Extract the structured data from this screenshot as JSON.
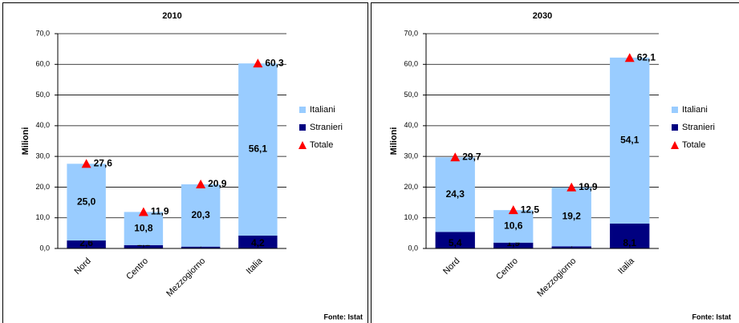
{
  "chart_data": [
    {
      "type": "bar",
      "title": "2010",
      "y_label": "Milioni",
      "source": "Fonte: Istat",
      "categories": [
        "Nord",
        "Centro",
        "Mezzogiorno",
        "Italia"
      ],
      "series": [
        {
          "name": "Italiani",
          "color": "#99ccff",
          "stacked": true,
          "values": [
            25.0,
            10.8,
            20.3,
            56.1
          ],
          "value_labels": [
            "25,0",
            "10,8",
            "20,3",
            "56,1"
          ]
        },
        {
          "name": "Stranieri",
          "color": "#000080",
          "stacked": true,
          "values": [
            2.6,
            1.1,
            0.6,
            4.2
          ],
          "value_labels": [
            "2,6",
            "1,1",
            "0,6",
            "4,2"
          ]
        },
        {
          "name": "Totale",
          "color": "#ff0000",
          "marker": "triangle",
          "values": [
            27.6,
            11.9,
            20.9,
            60.3
          ],
          "value_labels": [
            "27,6",
            "11,9",
            "20,9",
            "60,3"
          ]
        }
      ],
      "ylim": [
        0,
        70
      ],
      "yticks": [
        {
          "value": 0,
          "label": "0,0"
        },
        {
          "value": 10,
          "label": "10,0"
        },
        {
          "value": 20,
          "label": "20,0"
        },
        {
          "value": 30,
          "label": "30,0"
        },
        {
          "value": 40,
          "label": "40,0"
        },
        {
          "value": 50,
          "label": "50,0"
        },
        {
          "value": 60,
          "label": "60,0"
        },
        {
          "value": 70,
          "label": "70,0"
        }
      ],
      "grid": true,
      "legend": "right"
    },
    {
      "type": "bar",
      "title": "2030",
      "y_label": "Milioni",
      "source": "Fonte: Istat",
      "categories": [
        "Nord",
        "Centro",
        "Mezzogiorno",
        "Italia"
      ],
      "series": [
        {
          "name": "Italiani",
          "color": "#99ccff",
          "stacked": true,
          "values": [
            24.3,
            10.6,
            19.2,
            54.1
          ],
          "value_labels": [
            "24,3",
            "10,6",
            "19,2",
            "54,1"
          ]
        },
        {
          "name": "Stranieri",
          "color": "#000080",
          "stacked": true,
          "values": [
            5.4,
            1.9,
            0.7,
            8.1
          ],
          "value_labels": [
            "5,4",
            "1,9",
            "0,7",
            "8,1"
          ]
        },
        {
          "name": "Totale",
          "color": "#ff0000",
          "marker": "triangle",
          "values": [
            29.7,
            12.5,
            19.9,
            62.1
          ],
          "value_labels": [
            "29,7",
            "12,5",
            "19,9",
            "62,1"
          ]
        }
      ],
      "ylim": [
        0,
        70
      ],
      "yticks": [
        {
          "value": 0,
          "label": "0,0"
        },
        {
          "value": 10,
          "label": "10,0"
        },
        {
          "value": 20,
          "label": "20,0"
        },
        {
          "value": 30,
          "label": "30,0"
        },
        {
          "value": 40,
          "label": "40,0"
        },
        {
          "value": 50,
          "label": "50,0"
        },
        {
          "value": 60,
          "label": "60,0"
        },
        {
          "value": 70,
          "label": "70,0"
        }
      ],
      "grid": true,
      "legend": "right"
    }
  ]
}
